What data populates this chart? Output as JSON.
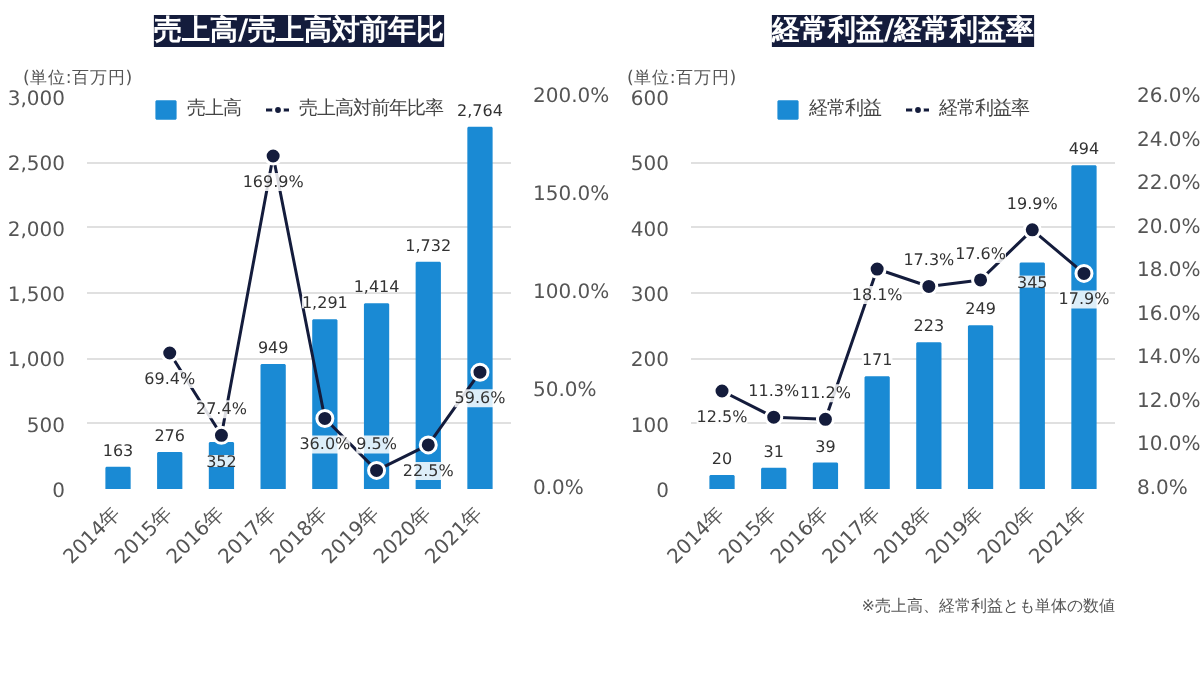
{
  "chart_data": [
    {
      "type": "bar",
      "title": "売上高/売上高対前年比",
      "ylabel": "(単位:百万円)",
      "categories": [
        "2014年",
        "2015年",
        "2016年",
        "2017年",
        "2018年",
        "2019年",
        "2020年",
        "2021年"
      ],
      "series": [
        {
          "name": "売上高",
          "color": "#1a8ad4",
          "values": [
            163,
            276,
            352,
            949,
            1291,
            1414,
            1732,
            2764
          ],
          "value_labels": [
            "163",
            "276",
            "352",
            "949",
            "1,291",
            "1,414",
            "1,732",
            "2,764"
          ]
        },
        {
          "name": "売上高対前年比率",
          "type": "line",
          "axis": "y2",
          "color": "#141c3c",
          "values": [
            null,
            69.4,
            27.4,
            169.9,
            36.0,
            9.5,
            22.5,
            59.6
          ],
          "value_labels": [
            null,
            "69.4%",
            "27.4%",
            "169.9%",
            "36.0%",
            "9.5%",
            "22.5%",
            "59.6%"
          ]
        }
      ],
      "ylim": [
        0,
        3000
      ],
      "yticks": [
        0,
        {
          "value": 500,
          "label": "500"
        },
        {
          "value": 1000,
          "label": "1,000"
        },
        {
          "value": 1500,
          "label": "1,500"
        },
        {
          "value": 2000,
          "label": "2,000"
        },
        {
          "value": 2500,
          "label": "2,500"
        },
        {
          "value": 3000,
          "label": "3,000"
        }
      ],
      "y2lim": [
        0,
        200
      ],
      "y2ticks": [
        {
          "value": 0,
          "label": "0.0%"
        },
        {
          "value": 50,
          "label": "50.0%"
        },
        {
          "value": 100,
          "label": "100.0%"
        },
        {
          "value": 150,
          "label": "150.0%"
        },
        {
          "value": 200,
          "label": "200.0%"
        }
      ],
      "grid": "y",
      "legend": "top",
      "marker": "circle",
      "line_style": "solid"
    },
    {
      "type": "bar",
      "title": "経常利益/経常利益率",
      "ylabel": "(単位:百万円)",
      "categories": [
        "2014年",
        "2015年",
        "2016年",
        "2017年",
        "2018年",
        "2019年",
        "2020年",
        "2021年"
      ],
      "series": [
        {
          "name": "経常利益",
          "color": "#1a8ad4",
          "values": [
            20,
            31,
            39,
            171,
            223,
            249,
            345,
            494
          ],
          "value_labels": [
            "20",
            "31",
            "39",
            "171",
            "223",
            "249",
            "345",
            "494"
          ]
        },
        {
          "name": "経常利益率",
          "type": "line",
          "axis": "y2",
          "color": "#141c3c",
          "values": [
            12.5,
            11.3,
            11.2,
            18.1,
            17.3,
            17.6,
            19.9,
            17.9
          ],
          "value_labels": [
            "12.5%",
            "11.3%",
            "11.2%",
            "18.1%",
            "17.3%",
            "17.6%",
            "19.9%",
            "17.9%"
          ]
        }
      ],
      "ylim": [
        0,
        600
      ],
      "yticks": [
        0,
        100,
        200,
        300,
        400,
        500,
        600
      ],
      "y2lim": [
        8,
        26
      ],
      "y2ticks": [
        {
          "value": 8,
          "label": "8.0%"
        },
        {
          "value": 10,
          "label": "10.0%"
        },
        {
          "value": 12,
          "label": "12.0%"
        },
        {
          "value": 14,
          "label": "14.0%"
        },
        {
          "value": 16,
          "label": "16.0%"
        },
        {
          "value": 18,
          "label": "18.0%"
        },
        {
          "value": 20,
          "label": "20.0%"
        },
        {
          "value": 22,
          "label": "22.0%"
        },
        {
          "value": 24,
          "label": "24.0%"
        },
        {
          "value": 26,
          "label": "26.0%"
        }
      ],
      "grid": "y",
      "legend": "top",
      "marker": "circle",
      "line_style": "solid",
      "annotations": [
        "※売上高、経常利益とも単体の数値"
      ]
    }
  ]
}
